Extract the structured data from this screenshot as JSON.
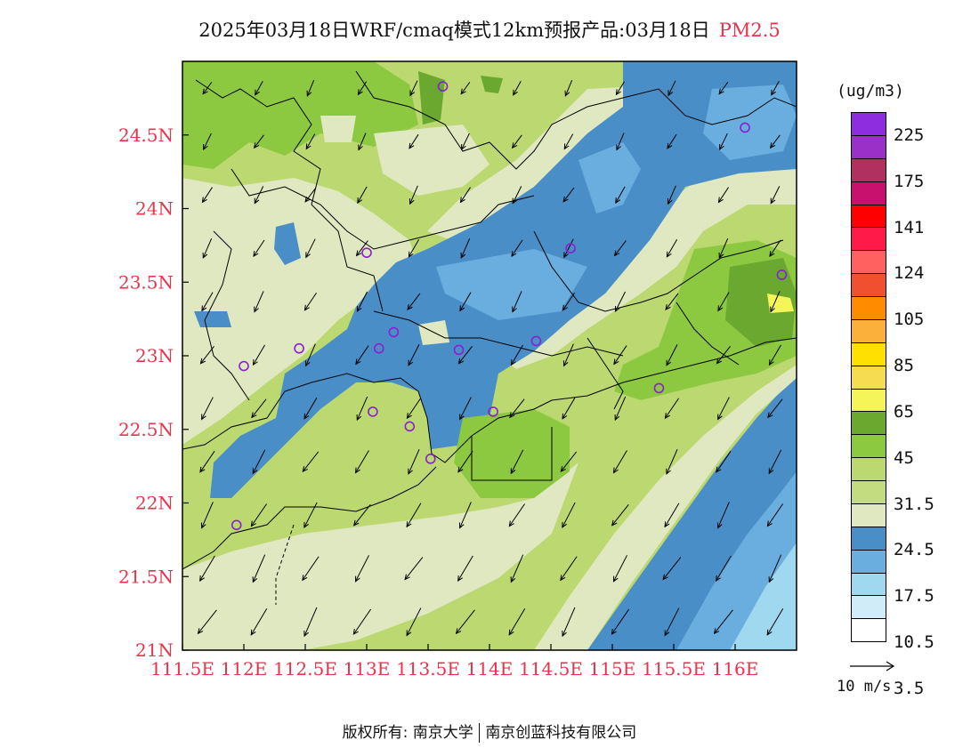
{
  "title": {
    "main": "2025年03月18日WRF/cmaq模式12km预报产品:03月18日",
    "pollutant": "PM2.5",
    "pollutant_color": "#e8334a"
  },
  "axes": {
    "lon_ticks": [
      "111.5E",
      "112E",
      "112.5E",
      "113E",
      "113.5E",
      "114E",
      "114.5E",
      "115E",
      "115.5E",
      "116E"
    ],
    "lat_ticks": [
      "21N",
      "21.5N",
      "22N",
      "22.5N",
      "23N",
      "23.5N",
      "24N",
      "24.5N"
    ],
    "tick_label_color": "#e8334a",
    "lon_range": [
      111.5,
      116.5
    ],
    "lat_range": [
      21.0,
      25.0
    ]
  },
  "legend": {
    "unit": "(ug/m3)",
    "colors": [
      "#8e2ce0",
      "#9b30c8",
      "#b03060",
      "#c8106e",
      "#ff0000",
      "#ff1a4a",
      "#ff6060",
      "#f05030",
      "#ff8c00",
      "#fbb03b",
      "#ffe000",
      "#f5dc50",
      "#f5f55a",
      "#6aa830",
      "#8cc840",
      "#bcd870",
      "#c4dc80",
      "#dfe8c0",
      "#4a8ec8",
      "#6aaee0",
      "#a0d8f0",
      "#d0ecf8",
      "#ffffff"
    ],
    "labels": [
      "225",
      "175",
      "141",
      "124",
      "105",
      "85",
      "65",
      "45",
      "31.5",
      "24.5",
      "17.5",
      "10.5",
      "3.5"
    ]
  },
  "wind_reference": {
    "label": "10 m/s"
  },
  "cities": [
    {
      "lon": 113.62,
      "lat": 24.83
    },
    {
      "lon": 116.08,
      "lat": 24.55
    },
    {
      "lon": 114.66,
      "lat": 23.73
    },
    {
      "lon": 113.0,
      "lat": 23.7
    },
    {
      "lon": 116.38,
      "lat": 23.55
    },
    {
      "lon": 113.22,
      "lat": 23.16
    },
    {
      "lon": 112.45,
      "lat": 23.05
    },
    {
      "lon": 113.1,
      "lat": 23.05
    },
    {
      "lon": 113.75,
      "lat": 23.04
    },
    {
      "lon": 114.38,
      "lat": 23.1
    },
    {
      "lon": 112.0,
      "lat": 22.93
    },
    {
      "lon": 115.38,
      "lat": 22.78
    },
    {
      "lon": 113.05,
      "lat": 22.62
    },
    {
      "lon": 114.03,
      "lat": 22.62
    },
    {
      "lon": 113.35,
      "lat": 22.52
    },
    {
      "lon": 113.52,
      "lat": 22.3
    },
    {
      "lon": 111.94,
      "lat": 21.85
    }
  ],
  "footer": {
    "left": "版权所有: 南京大学",
    "right": "南京创蓝科技有限公司"
  }
}
